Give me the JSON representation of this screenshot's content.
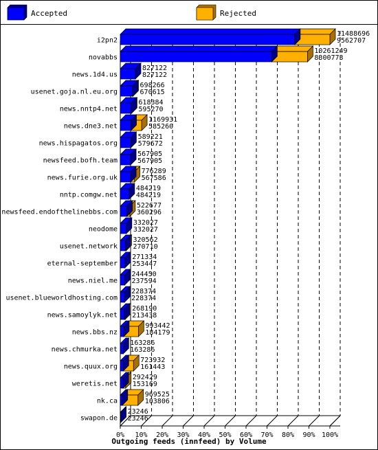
{
  "legend": {
    "accepted": {
      "label": "Accepted",
      "color": "#0000ff"
    },
    "rejected": {
      "label": "Rejected",
      "color": "#ffb000"
    }
  },
  "chart_data": {
    "type": "bar",
    "orientation": "horizontal",
    "stacked": true,
    "title": "",
    "xlabel": "Outgoing feeds (innfeed) by Volume",
    "ylabel": "",
    "xlim": [
      0,
      100
    ],
    "x_ticks": [
      "0%",
      "10%",
      "20%",
      "30%",
      "40%",
      "50%",
      "60%",
      "70%",
      "80%",
      "90%",
      "100%"
    ],
    "categories": [
      "i2pn2",
      "novabbs",
      "news.1d4.us",
      "usenet.goja.nl.eu.org",
      "news.nntp4.net",
      "news.dne3.net",
      "news.hispagatos.org",
      "newsfeed.bofh.team",
      "news.furie.org.uk",
      "nntp.comgw.net",
      "newsfeed.endofthelinebbs.com",
      "neodome",
      "usenet.network",
      "eternal-september",
      "news.niel.me",
      "usenet.blueworldhosting.com",
      "news.samoylyk.net",
      "news.bbs.nz",
      "news.chmurka.net",
      "news.quux.org",
      "weretis.net",
      "nk.ca",
      "swapon.de"
    ],
    "offered": [
      11488696,
      10261249,
      827122,
      698266,
      618384,
      1169931,
      589221,
      567905,
      776289,
      484219,
      522677,
      332027,
      320562,
      271334,
      244450,
      228374,
      268190,
      993442,
      163286,
      723932,
      292429,
      969525,
      23246
    ],
    "accepted": [
      9562707,
      8300773,
      827122,
      670615,
      595270,
      585260,
      579672,
      567905,
      567586,
      484219,
      360296,
      332027,
      270710,
      253447,
      237594,
      228374,
      213438,
      184179,
      163286,
      161443,
      153169,
      103806,
      23246
    ],
    "series": [
      {
        "name": "Accepted",
        "color": "#0000ff"
      },
      {
        "name": "Rejected",
        "color": "#ffb000"
      }
    ],
    "grid": "vertical dashed",
    "legend_position": "top"
  }
}
